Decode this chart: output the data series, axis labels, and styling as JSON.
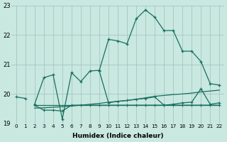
{
  "xlabel": "Humidex (Indice chaleur)",
  "bg_color": "#c8e8e0",
  "grid_color": "#9fbfb8",
  "line_color": "#1a6e60",
  "xlim": [
    -0.5,
    22.5
  ],
  "ylim": [
    19.0,
    23.0
  ],
  "yticks": [
    19,
    20,
    21,
    22,
    23
  ],
  "xticks": [
    0,
    1,
    2,
    3,
    4,
    5,
    6,
    7,
    8,
    9,
    10,
    11,
    12,
    13,
    14,
    15,
    16,
    17,
    18,
    19,
    20,
    21,
    22
  ],
  "series_main": {
    "x": [
      2,
      3,
      4,
      5,
      6,
      7,
      8,
      9,
      10,
      11,
      12,
      13,
      14,
      15,
      16,
      17,
      18,
      19,
      20,
      21,
      22
    ],
    "y": [
      19.65,
      20.55,
      20.65,
      19.15,
      20.72,
      20.42,
      20.78,
      20.8,
      21.85,
      21.8,
      21.7,
      22.55,
      22.85,
      22.6,
      22.15,
      22.15,
      21.45,
      21.45,
      21.1,
      20.35,
      20.3
    ]
  },
  "series_secondary": {
    "segments": [
      {
        "x": [
          0,
          1
        ],
        "y": [
          19.9,
          19.85
        ]
      },
      {
        "x": [
          9,
          10,
          11,
          12,
          13,
          14,
          15,
          16,
          17,
          18,
          19,
          20,
          21,
          22
        ],
        "y": [
          20.78,
          19.7,
          19.75,
          19.78,
          19.82,
          19.85,
          19.9,
          19.62,
          19.65,
          19.7,
          19.72,
          20.18,
          19.65,
          19.7
        ]
      }
    ]
  },
  "series_flat1": {
    "x": [
      2,
      3,
      4,
      5,
      6,
      7,
      8,
      9,
      10,
      11,
      12,
      13,
      14,
      15,
      16,
      17,
      18,
      19,
      20,
      21,
      22
    ],
    "y": [
      19.62,
      19.45,
      19.45,
      19.42,
      19.62,
      19.62,
      19.62,
      19.62,
      19.62,
      19.62,
      19.62,
      19.62,
      19.62,
      19.62,
      19.62,
      19.62,
      19.62,
      19.62,
      19.62,
      19.62,
      19.62
    ]
  },
  "series_flat2": {
    "x": [
      2,
      3,
      4,
      5,
      6,
      7,
      8,
      9,
      10,
      11,
      12,
      13,
      14,
      15,
      16,
      17,
      18,
      19,
      20,
      21,
      22
    ],
    "y": [
      19.52,
      19.53,
      19.55,
      19.57,
      19.59,
      19.62,
      19.65,
      19.68,
      19.72,
      19.75,
      19.78,
      19.82,
      19.87,
      19.92,
      19.95,
      19.98,
      20.0,
      20.03,
      20.07,
      20.1,
      20.13
    ]
  },
  "series_flat3": {
    "x": [
      2,
      3,
      4,
      5,
      6,
      7,
      8,
      9,
      10,
      11,
      12,
      13,
      14,
      15,
      16,
      17,
      18,
      19,
      20,
      21,
      22
    ],
    "y": [
      19.62,
      19.62,
      19.62,
      19.62,
      19.62,
      19.62,
      19.62,
      19.62,
      19.62,
      19.62,
      19.62,
      19.62,
      19.62,
      19.62,
      19.62,
      19.62,
      19.62,
      19.62,
      19.62,
      19.62,
      19.62
    ]
  }
}
